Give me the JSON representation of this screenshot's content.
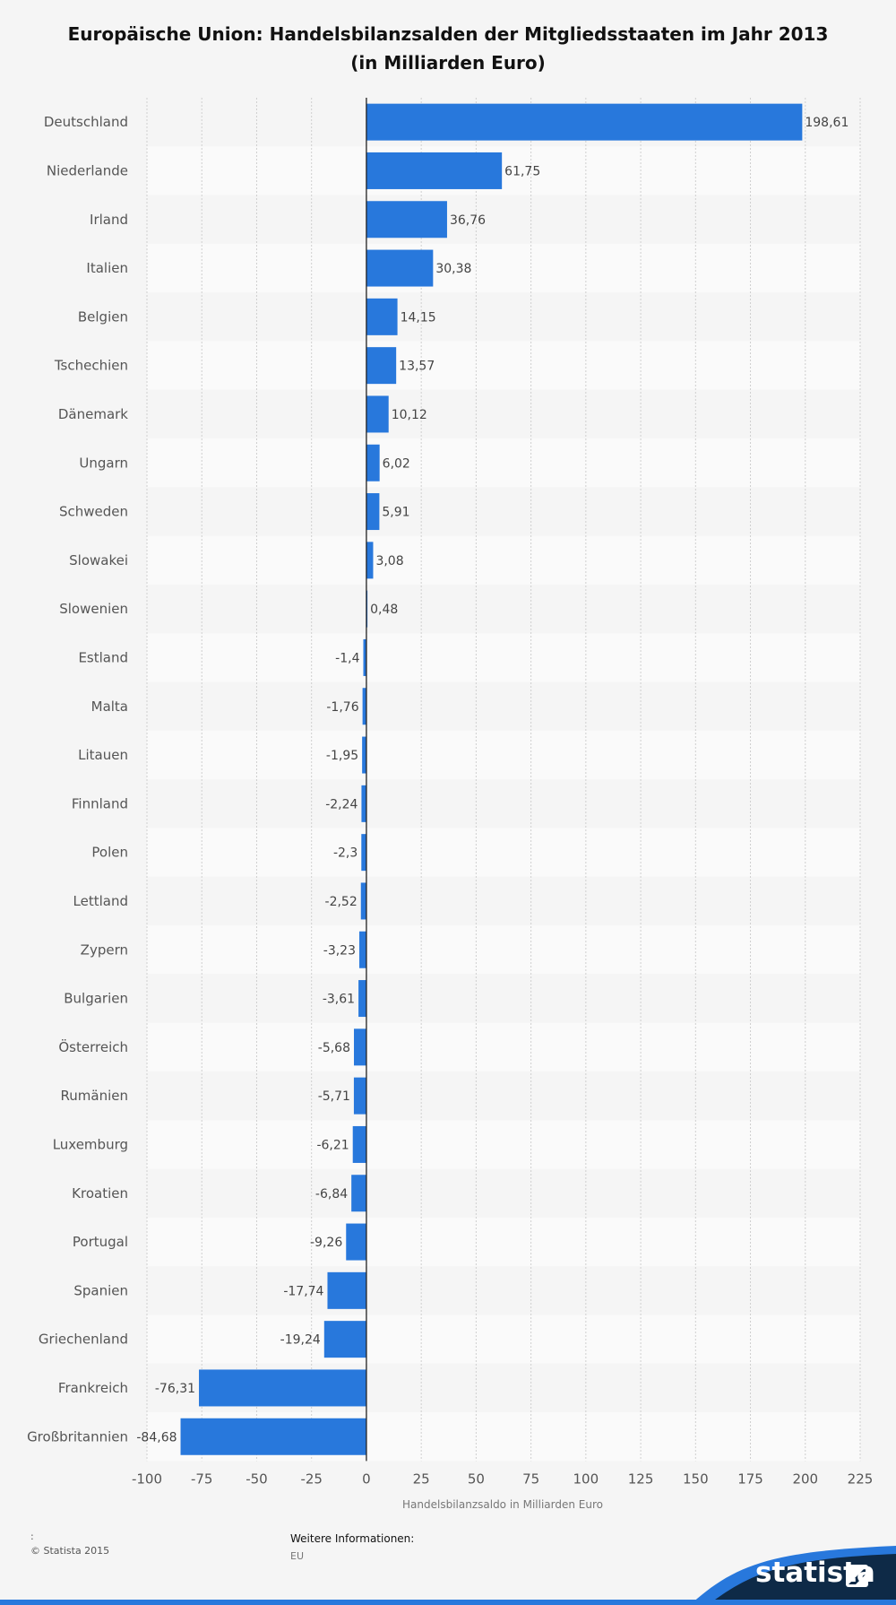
{
  "chart_data": {
    "type": "bar",
    "orientation": "horizontal",
    "title": "Europäische Union: Handelsbilanzsalden der Mitgliedsstaaten im Jahr 2013",
    "subtitle": "(in Milliarden Euro)",
    "xlabel": "Handelsbilanzsaldo in Milliarden Euro",
    "ylabel": "",
    "xlim": [
      -100,
      225
    ],
    "xticks": [
      -100,
      -75,
      -50,
      -25,
      0,
      25,
      50,
      75,
      100,
      125,
      150,
      175,
      200,
      225
    ],
    "grid": true,
    "bar_color": "#2878dc",
    "categories": [
      "Deutschland",
      "Niederlande",
      "Irland",
      "Italien",
      "Belgien",
      "Tschechien",
      "Dänemark",
      "Ungarn",
      "Schweden",
      "Slowakei",
      "Slowenien",
      "Estland",
      "Malta",
      "Litauen",
      "Finnland",
      "Polen",
      "Lettland",
      "Zypern",
      "Bulgarien",
      "Österreich",
      "Rumänien",
      "Luxemburg",
      "Kroatien",
      "Portugal",
      "Spanien",
      "Griechenland",
      "Frankreich",
      "Großbritannien"
    ],
    "values": [
      198.61,
      61.75,
      36.76,
      30.38,
      14.15,
      13.57,
      10.12,
      6.02,
      5.91,
      3.08,
      0.48,
      -1.4,
      -1.76,
      -1.95,
      -2.24,
      -2.3,
      -2.52,
      -3.23,
      -3.61,
      -5.68,
      -5.71,
      -6.21,
      -6.84,
      -9.26,
      -17.74,
      -19.24,
      -76.31,
      -84.68
    ],
    "value_labels": [
      "198,61",
      "61,75",
      "36,76",
      "30,38",
      "14,15",
      "13,57",
      "10,12",
      "6,02",
      "5,91",
      "3,08",
      "0,48",
      "-1,4",
      "-1,76",
      "-1,95",
      "-2,24",
      "-2,3",
      "-2,52",
      "-3,23",
      "-3,61",
      "-5,68",
      "-5,71",
      "-6,21",
      "-6,84",
      "-9,26",
      "-17,74",
      "-19,24",
      "-76,31",
      "-84,68"
    ]
  },
  "footer": {
    "source_marker": ":",
    "copyright": "© Statista 2015",
    "info_heading": "Weitere Informationen:",
    "info_value": "EU",
    "brand": "statista"
  },
  "colors": {
    "background": "#f5f5f5",
    "brand_dark": "#0e2a47",
    "brand_blue": "#2878dc"
  }
}
